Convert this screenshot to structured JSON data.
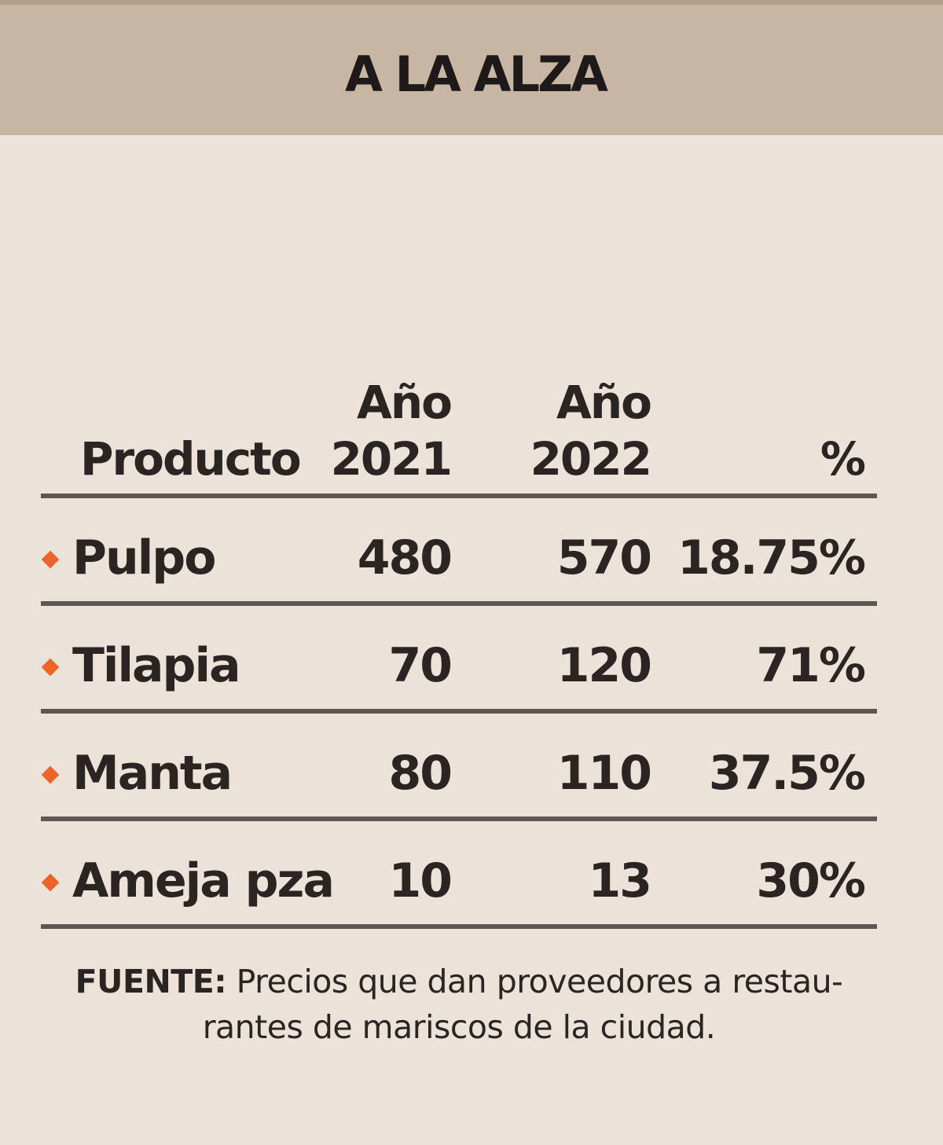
{
  "header": {
    "title": "A LA ALZA"
  },
  "colors": {
    "header_bg": "#c6b6a3",
    "page_bg": "#ebe3d9",
    "bullet": "#ee6326",
    "rule": "#5e5654"
  },
  "chart_data": {
    "type": "table",
    "title": "A LA ALZA",
    "columns": [
      {
        "line1": "",
        "line2": "Producto"
      },
      {
        "line1": "Año",
        "line2": "2021"
      },
      {
        "line1": "Año",
        "line2": "2022"
      },
      {
        "line1": "",
        "line2": "%"
      }
    ],
    "rows": [
      {
        "product": "Pulpo",
        "y2021": "480",
        "y2022": "570",
        "pct": "18.75%"
      },
      {
        "product": "Tilapia",
        "y2021": "70",
        "y2022": "120",
        "pct": "71%"
      },
      {
        "product": "Manta",
        "y2021": "80",
        "y2022": "110",
        "pct": "37.5%"
      },
      {
        "product": "Ameja pza",
        "y2021": "10",
        "y2022": "13",
        "pct": "30%"
      }
    ]
  },
  "source": {
    "label": "FUENTE:",
    "text_line1": " Precios que dan proveedores a restau-",
    "text_line2": "rantes de mariscos de la ciudad."
  }
}
